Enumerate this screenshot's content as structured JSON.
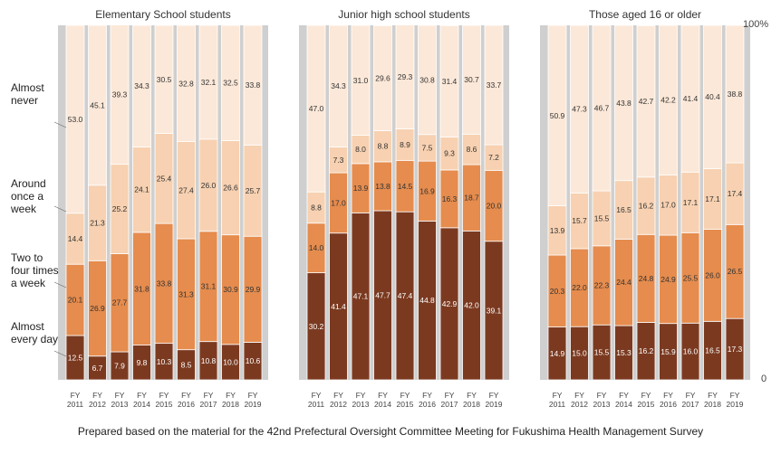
{
  "chart_data": {
    "type": "bar",
    "stacked": true,
    "ylim": [
      0,
      100
    ],
    "y_labels": {
      "top": "100%",
      "bottom": "0"
    },
    "legend_labels": [
      "Almost never",
      "Around once a week",
      "Two to four times a week",
      "Almost every day"
    ],
    "legend_placement": "left",
    "colors": {
      "almost_every_day": "#7b3a20",
      "two_to_four": "#e58c4e",
      "once_a_week": "#f7d1b1",
      "almost_never": "#fce8d8",
      "panel_bg": "#cfcfcf",
      "bar_stroke": "#ffffff"
    },
    "categories": [
      "FY 2011",
      "FY 2012",
      "FY 2013",
      "FY 2014",
      "FY 2015",
      "FY 2016",
      "FY 2017",
      "FY 2018",
      "FY 2019"
    ],
    "panels": [
      {
        "title": "Elementary School students",
        "series": [
          {
            "name": "Almost every day",
            "values": [
              12.5,
              6.7,
              7.9,
              9.8,
              10.3,
              8.5,
              10.8,
              10.0,
              10.6
            ]
          },
          {
            "name": "Two to four times a week",
            "values": [
              20.1,
              26.9,
              27.7,
              31.8,
              33.8,
              31.3,
              31.1,
              30.9,
              29.9
            ]
          },
          {
            "name": "Around once a week",
            "values": [
              14.4,
              21.3,
              25.2,
              24.1,
              25.4,
              27.4,
              26.0,
              26.6,
              25.7
            ]
          },
          {
            "name": "Almost never",
            "values": [
              53.0,
              45.1,
              39.3,
              34.3,
              30.5,
              32.8,
              32.1,
              32.5,
              33.8
            ]
          }
        ]
      },
      {
        "title": "Junior high school students",
        "series": [
          {
            "name": "Almost every day",
            "values": [
              30.2,
              41.4,
              47.1,
              47.7,
              47.4,
              44.8,
              42.9,
              42.0,
              39.1
            ]
          },
          {
            "name": "Two to four times a week",
            "values": [
              14.0,
              17.0,
              13.9,
              13.8,
              14.5,
              16.9,
              16.3,
              18.7,
              20.0
            ]
          },
          {
            "name": "Around once a week",
            "values": [
              8.8,
              7.3,
              8.0,
              8.8,
              8.9,
              7.5,
              9.3,
              8.6,
              7.2
            ]
          },
          {
            "name": "Almost never",
            "values": [
              47.0,
              34.3,
              31.0,
              29.6,
              29.3,
              30.8,
              31.4,
              30.7,
              33.7
            ]
          }
        ]
      },
      {
        "title": "Those aged 16 or older",
        "series": [
          {
            "name": "Almost every day",
            "values": [
              14.9,
              15.0,
              15.5,
              15.3,
              16.2,
              15.9,
              16.0,
              16.5,
              17.3
            ]
          },
          {
            "name": "Two to four times a week",
            "values": [
              20.3,
              22.0,
              22.3,
              24.4,
              24.8,
              24.9,
              25.5,
              26.0,
              26.5
            ]
          },
          {
            "name": "Around once a week",
            "values": [
              13.9,
              15.7,
              15.5,
              16.5,
              16.2,
              17.0,
              17.1,
              17.1,
              17.4
            ]
          },
          {
            "name": "Almost never",
            "values": [
              50.9,
              47.3,
              46.7,
              43.8,
              42.7,
              42.2,
              41.4,
              40.4,
              38.8
            ]
          }
        ]
      }
    ]
  },
  "legend": {
    "almost_never": [
      "Almost",
      "never"
    ],
    "once_a_week": [
      "Around",
      "once a",
      "week"
    ],
    "two_to_four": [
      "Two to",
      "four times",
      "a week"
    ],
    "every_day": [
      "Almost",
      "every day"
    ]
  },
  "footnote": "Prepared based on the material for the 42nd Prefectural Oversight Committee Meeting for Fukushima Health Management Survey"
}
